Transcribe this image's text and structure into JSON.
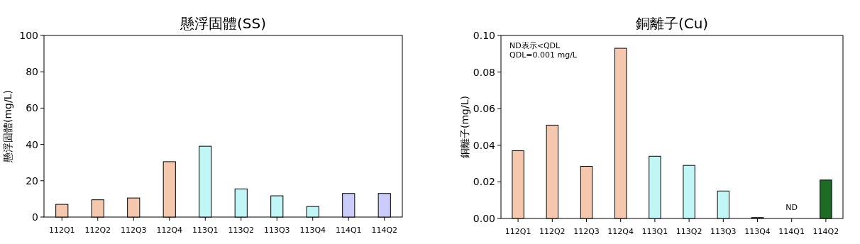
{
  "chart_data": [
    {
      "type": "bar",
      "title": "懸浮固體(SS)",
      "ylabel": "懸浮固體(mg/L)",
      "categories": [
        "112Q1",
        "112Q2",
        "112Q3",
        "112Q4",
        "113Q1",
        "113Q2",
        "113Q3",
        "113Q4",
        "114Q1",
        "114Q2"
      ],
      "values": [
        7,
        9.5,
        10.5,
        30.5,
        39,
        15.5,
        11.7,
        5.8,
        13,
        13
      ],
      "colors": [
        "#f5c8ae",
        "#f5c8ae",
        "#f5c8ae",
        "#f5c8ae",
        "#c0f6f6",
        "#c0f6f6",
        "#c0f6f6",
        "#c0f6f6",
        "#ccccfa",
        "#ccccfa"
      ],
      "ylim": [
        0,
        100
      ],
      "yticks": [
        0,
        20,
        40,
        60,
        80,
        100
      ]
    },
    {
      "type": "bar",
      "title": "銅離子(Cu)",
      "ylabel": "銅離子(mg/L)",
      "categories": [
        "112Q1",
        "112Q2",
        "112Q3",
        "112Q4",
        "113Q1",
        "113Q2",
        "113Q3",
        "113Q4",
        "114Q1",
        "114Q2"
      ],
      "values": [
        0.037,
        0.051,
        0.0285,
        0.093,
        0.034,
        0.029,
        0.015,
        0.0005,
        null,
        0.021
      ],
      "colors": [
        "#f5c8ae",
        "#f5c8ae",
        "#f5c8ae",
        "#f5c8ae",
        "#c0f6f6",
        "#c0f6f6",
        "#c0f6f6",
        "#c0f6f6",
        null,
        "#1e6b25"
      ],
      "value_labels": [
        null,
        null,
        null,
        null,
        null,
        null,
        null,
        null,
        "ND",
        null
      ],
      "ylim": [
        0,
        0.1
      ],
      "yticks": [
        {
          "value": 0,
          "label": "0.00"
        },
        {
          "value": 0.02,
          "label": "0.02"
        },
        {
          "value": 0.04,
          "label": "0.04"
        },
        {
          "value": 0.06,
          "label": "0.06"
        },
        {
          "value": 0.08,
          "label": "0.08"
        },
        {
          "value": 0.1,
          "label": "0.10"
        }
      ],
      "annotations": [
        "ND表示<QDL",
        "QDL=0.001 mg/L"
      ]
    }
  ]
}
